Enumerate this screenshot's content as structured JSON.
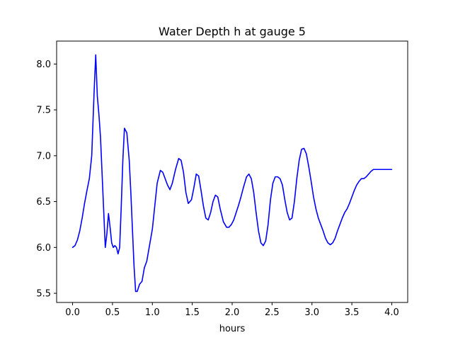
{
  "chart_data": {
    "type": "line",
    "title": "Water Depth h at gauge 5",
    "xlabel": "hours",
    "ylabel": "",
    "xlim": [
      -0.2,
      4.2
    ],
    "ylim": [
      5.4,
      8.25
    ],
    "xticks": [
      0.0,
      0.5,
      1.0,
      1.5,
      2.0,
      2.5,
      3.0,
      3.5,
      4.0
    ],
    "xtick_labels": [
      "0.0",
      "0.5",
      "1.0",
      "1.5",
      "2.0",
      "2.5",
      "3.0",
      "3.5",
      "4.0"
    ],
    "yticks": [
      5.5,
      6.0,
      6.5,
      7.0,
      7.5,
      8.0
    ],
    "ytick_labels": [
      "5.5",
      "6.0",
      "6.5",
      "7.0",
      "7.5",
      "8.0"
    ],
    "grid": false,
    "series": [
      {
        "color": "#0000ff",
        "x": [
          0.0,
          0.03,
          0.06,
          0.09,
          0.12,
          0.15,
          0.18,
          0.21,
          0.24,
          0.27,
          0.29,
          0.31,
          0.33,
          0.35,
          0.38,
          0.41,
          0.43,
          0.45,
          0.47,
          0.49,
          0.51,
          0.53,
          0.55,
          0.57,
          0.59,
          0.61,
          0.63,
          0.65,
          0.68,
          0.71,
          0.73,
          0.75,
          0.77,
          0.79,
          0.81,
          0.84,
          0.87,
          0.9,
          0.93,
          0.96,
          0.98,
          1.0,
          1.03,
          1.06,
          1.1,
          1.13,
          1.16,
          1.19,
          1.22,
          1.25,
          1.29,
          1.33,
          1.36,
          1.39,
          1.42,
          1.45,
          1.49,
          1.52,
          1.55,
          1.58,
          1.61,
          1.64,
          1.67,
          1.7,
          1.73,
          1.76,
          1.79,
          1.82,
          1.85,
          1.89,
          1.93,
          1.96,
          1.99,
          2.02,
          2.05,
          2.08,
          2.11,
          2.14,
          2.18,
          2.21,
          2.24,
          2.27,
          2.3,
          2.33,
          2.36,
          2.39,
          2.42,
          2.45,
          2.48,
          2.51,
          2.54,
          2.57,
          2.6,
          2.63,
          2.66,
          2.69,
          2.72,
          2.75,
          2.78,
          2.81,
          2.84,
          2.87,
          2.9,
          2.93,
          2.96,
          2.99,
          3.02,
          3.05,
          3.08,
          3.11,
          3.14,
          3.17,
          3.2,
          3.23,
          3.26,
          3.29,
          3.32,
          3.35,
          3.38,
          3.41,
          3.44,
          3.47,
          3.5,
          3.53,
          3.56,
          3.59,
          3.62,
          3.65,
          3.68,
          3.71,
          3.74,
          3.77,
          3.8,
          3.83,
          3.86,
          3.89,
          3.92,
          3.95,
          3.98,
          4.0
        ],
        "y": [
          6.0,
          6.02,
          6.08,
          6.18,
          6.32,
          6.48,
          6.62,
          6.75,
          7.0,
          7.7,
          8.1,
          7.65,
          7.45,
          7.2,
          6.6,
          6.0,
          6.15,
          6.37,
          6.22,
          6.05,
          6.0,
          6.02,
          6.0,
          5.93,
          6.0,
          6.45,
          6.95,
          7.3,
          7.25,
          6.95,
          6.6,
          6.2,
          5.8,
          5.52,
          5.52,
          5.6,
          5.63,
          5.78,
          5.85,
          6.0,
          6.1,
          6.2,
          6.45,
          6.7,
          6.84,
          6.82,
          6.75,
          6.68,
          6.63,
          6.7,
          6.85,
          6.97,
          6.95,
          6.82,
          6.6,
          6.48,
          6.52,
          6.65,
          6.8,
          6.78,
          6.62,
          6.45,
          6.32,
          6.3,
          6.38,
          6.5,
          6.57,
          6.55,
          6.42,
          6.28,
          6.22,
          6.22,
          6.25,
          6.3,
          6.38,
          6.46,
          6.55,
          6.65,
          6.77,
          6.8,
          6.75,
          6.6,
          6.38,
          6.18,
          6.05,
          6.02,
          6.07,
          6.25,
          6.52,
          6.7,
          6.77,
          6.77,
          6.75,
          6.68,
          6.52,
          6.38,
          6.3,
          6.32,
          6.5,
          6.75,
          6.95,
          7.07,
          7.08,
          7.02,
          6.88,
          6.72,
          6.55,
          6.42,
          6.32,
          6.25,
          6.18,
          6.1,
          6.05,
          6.03,
          6.05,
          6.1,
          6.18,
          6.25,
          6.32,
          6.38,
          6.42,
          6.48,
          6.55,
          6.62,
          6.68,
          6.72,
          6.75,
          6.75,
          6.77,
          6.8,
          6.83,
          6.85,
          6.85,
          6.85,
          6.85,
          6.85,
          6.85,
          6.85,
          6.85,
          6.85
        ]
      }
    ]
  }
}
